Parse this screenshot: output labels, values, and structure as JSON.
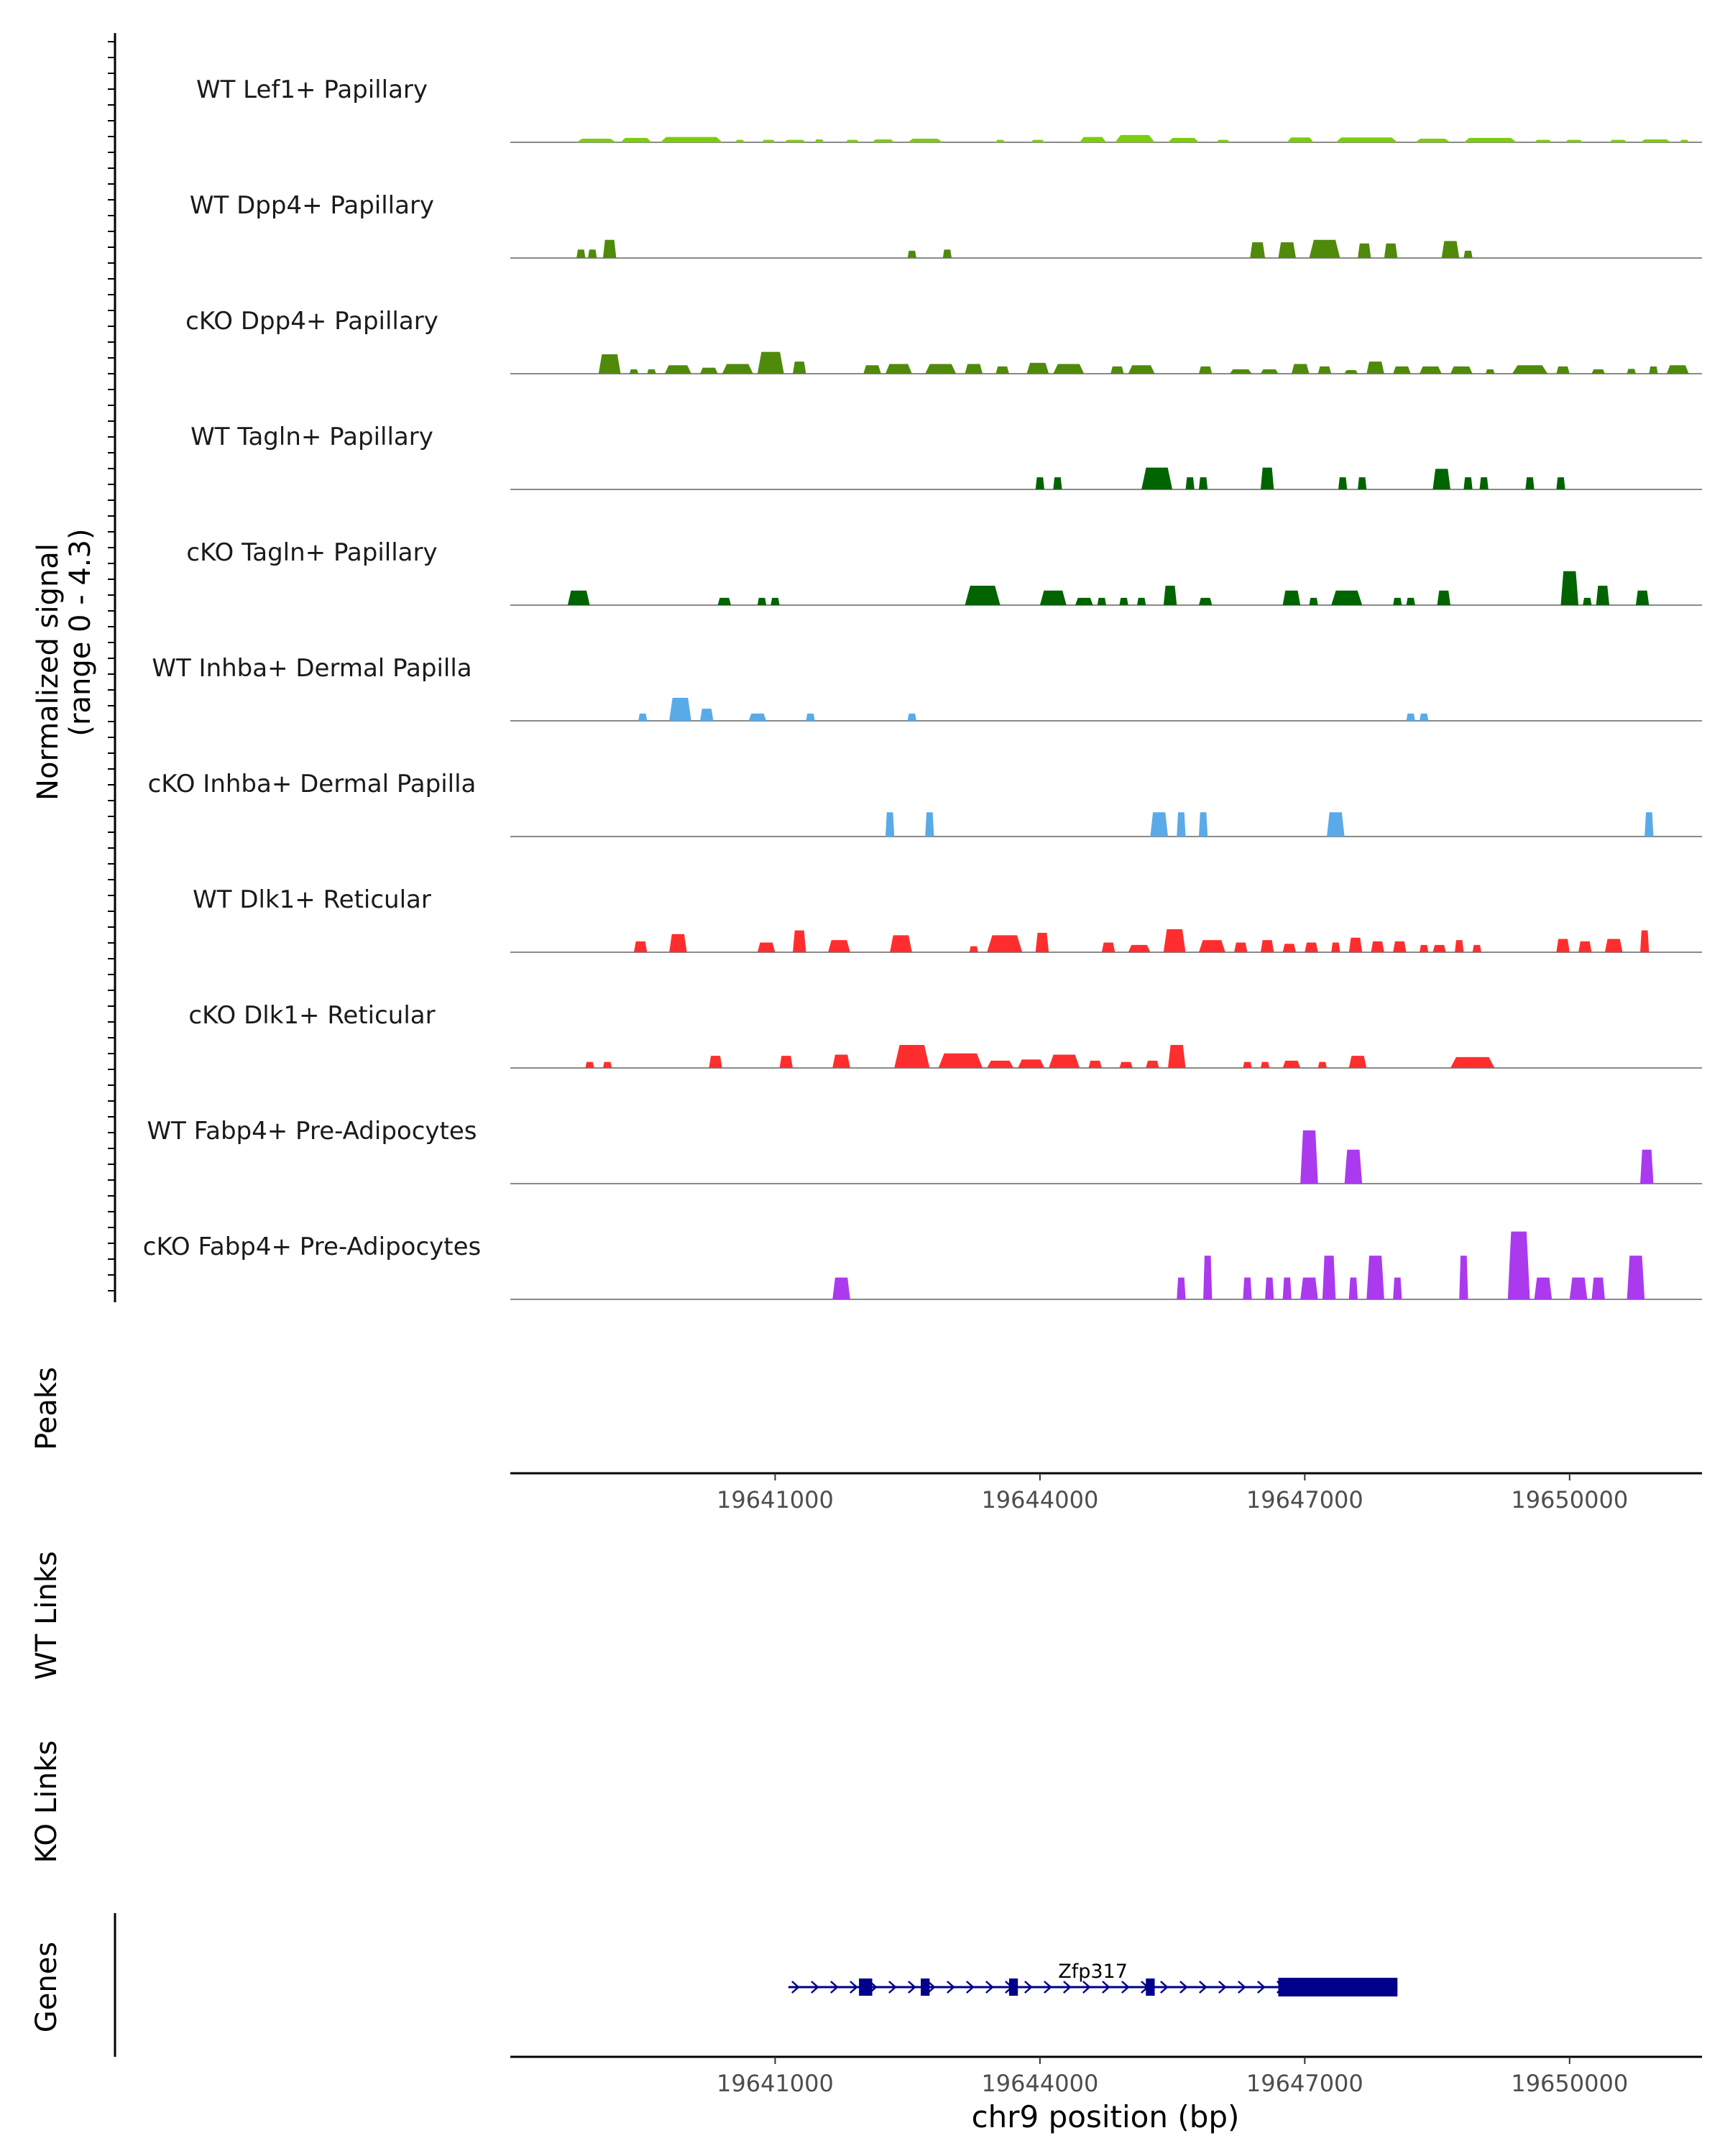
{
  "chart_data": {
    "type": "area",
    "title": "",
    "ylabel_line1": "Normalized signal",
    "ylabel_line2": "(range 0 - 4.3)",
    "y_range": [
      0,
      4.3
    ],
    "xlabel": "chr9 position (bp)",
    "x_range": [
      19638000,
      19651500
    ],
    "x_ticks": [
      19641000,
      19644000,
      19647000,
      19650000
    ],
    "x_tick_labels": [
      "19641000",
      "19644000",
      "19647000",
      "19650000"
    ],
    "tracks": [
      {
        "name": "WT Lef1+ Papillary",
        "color": "#7ccd0b",
        "mode": "dense",
        "peaks": [
          [
            19638750,
            19639200,
            0.15
          ],
          [
            19639250,
            19639600,
            0.18
          ],
          [
            19639700,
            19640400,
            0.22
          ],
          [
            19640550,
            19640650,
            0.1
          ],
          [
            19640850,
            19641000,
            0.1
          ],
          [
            19641100,
            19641350,
            0.1
          ],
          [
            19641450,
            19641550,
            0.12
          ],
          [
            19641800,
            19641950,
            0.1
          ],
          [
            19642100,
            19642350,
            0.12
          ],
          [
            19642500,
            19642900,
            0.15
          ],
          [
            19643500,
            19643600,
            0.1
          ],
          [
            19643900,
            19644050,
            0.1
          ],
          [
            19644450,
            19644750,
            0.22
          ],
          [
            19644850,
            19645300,
            0.3
          ],
          [
            19645450,
            19645800,
            0.18
          ],
          [
            19646000,
            19646150,
            0.1
          ],
          [
            19646800,
            19647100,
            0.2
          ],
          [
            19647350,
            19648050,
            0.2
          ],
          [
            19648250,
            19648650,
            0.15
          ],
          [
            19648800,
            19649400,
            0.18
          ],
          [
            19649600,
            19649800,
            0.1
          ],
          [
            19649950,
            19650150,
            0.1
          ],
          [
            19650450,
            19650650,
            0.1
          ],
          [
            19650800,
            19651150,
            0.12
          ],
          [
            19651250,
            19651350,
            0.1
          ]
        ]
      },
      {
        "name": "WT Dpp4+ Papillary",
        "color": "#4f8a0b",
        "mode": "sparse",
        "peaks": [
          [
            19638750,
            19638850,
            0.35
          ],
          [
            19638880,
            19638980,
            0.35
          ],
          [
            19639050,
            19639200,
            0.75
          ],
          [
            19642500,
            19642600,
            0.3
          ],
          [
            19642900,
            19643000,
            0.35
          ],
          [
            19646380,
            19646550,
            0.65
          ],
          [
            19646700,
            19646900,
            0.65
          ],
          [
            19647050,
            19647400,
            0.75
          ],
          [
            19647600,
            19647750,
            0.6
          ],
          [
            19647900,
            19648050,
            0.6
          ],
          [
            19648550,
            19648750,
            0.7
          ],
          [
            19648800,
            19648900,
            0.3
          ]
        ]
      },
      {
        "name": "cKO Dpp4+ Papillary",
        "color": "#4f8a0b",
        "mode": "dense",
        "peaks": [
          [
            19639000,
            19639250,
            0.8
          ],
          [
            19639350,
            19639450,
            0.18
          ],
          [
            19639550,
            19639650,
            0.18
          ],
          [
            19639750,
            19640050,
            0.35
          ],
          [
            19640150,
            19640350,
            0.25
          ],
          [
            19640400,
            19640750,
            0.4
          ],
          [
            19640800,
            19641100,
            0.9
          ],
          [
            19641200,
            19641350,
            0.5
          ],
          [
            19642000,
            19642200,
            0.35
          ],
          [
            19642250,
            19642550,
            0.4
          ],
          [
            19642700,
            19643050,
            0.4
          ],
          [
            19643150,
            19643350,
            0.4
          ],
          [
            19643500,
            19643650,
            0.3
          ],
          [
            19643850,
            19644100,
            0.45
          ],
          [
            19644150,
            19644500,
            0.4
          ],
          [
            19644800,
            19644950,
            0.3
          ],
          [
            19645000,
            19645300,
            0.35
          ],
          [
            19645800,
            19645950,
            0.3
          ],
          [
            19646150,
            19646400,
            0.18
          ],
          [
            19646500,
            19646700,
            0.18
          ],
          [
            19646850,
            19647050,
            0.4
          ],
          [
            19647150,
            19647300,
            0.3
          ],
          [
            19647450,
            19647600,
            0.15
          ],
          [
            19647700,
            19647900,
            0.5
          ],
          [
            19648000,
            19648200,
            0.3
          ],
          [
            19648300,
            19648550,
            0.3
          ],
          [
            19648650,
            19648900,
            0.3
          ],
          [
            19649050,
            19649150,
            0.18
          ],
          [
            19649350,
            19649750,
            0.35
          ],
          [
            19649850,
            19650000,
            0.3
          ],
          [
            19650250,
            19650400,
            0.18
          ],
          [
            19650650,
            19650750,
            0.2
          ],
          [
            19650900,
            19651000,
            0.3
          ],
          [
            19651100,
            19651350,
            0.35
          ]
        ]
      },
      {
        "name": "WT Tagln+ Papillary",
        "color": "#006400",
        "mode": "sparse",
        "peaks": [
          [
            19643950,
            19644050,
            0.5
          ],
          [
            19644150,
            19644250,
            0.5
          ],
          [
            19645150,
            19645500,
            0.9
          ],
          [
            19645650,
            19645750,
            0.5
          ],
          [
            19645800,
            19645900,
            0.5
          ],
          [
            19646500,
            19646650,
            0.9
          ],
          [
            19647380,
            19647480,
            0.5
          ],
          [
            19647600,
            19647700,
            0.5
          ],
          [
            19648450,
            19648650,
            0.85
          ],
          [
            19648800,
            19648900,
            0.5
          ],
          [
            19648980,
            19649080,
            0.5
          ],
          [
            19649500,
            19649600,
            0.5
          ],
          [
            19649850,
            19649950,
            0.5
          ]
        ]
      },
      {
        "name": "cKO Tagln+ Papillary",
        "color": "#006400",
        "mode": "sparse",
        "peaks": [
          [
            19638650,
            19638900,
            0.6
          ],
          [
            19640350,
            19640500,
            0.3
          ],
          [
            19640800,
            19640900,
            0.3
          ],
          [
            19640950,
            19641050,
            0.3
          ],
          [
            19643150,
            19643550,
            0.8
          ],
          [
            19644000,
            19644300,
            0.6
          ],
          [
            19644400,
            19644600,
            0.3
          ],
          [
            19644650,
            19644750,
            0.3
          ],
          [
            19644900,
            19645000,
            0.3
          ],
          [
            19645100,
            19645200,
            0.3
          ],
          [
            19645400,
            19645550,
            0.8
          ],
          [
            19645800,
            19645950,
            0.3
          ],
          [
            19646750,
            19646950,
            0.6
          ],
          [
            19647050,
            19647150,
            0.3
          ],
          [
            19647300,
            19647650,
            0.6
          ],
          [
            19648000,
            19648100,
            0.3
          ],
          [
            19648150,
            19648250,
            0.3
          ],
          [
            19648500,
            19648650,
            0.6
          ],
          [
            19649900,
            19650100,
            1.4
          ],
          [
            19650150,
            19650250,
            0.3
          ],
          [
            19650300,
            19650450,
            0.8
          ],
          [
            19650750,
            19650900,
            0.6
          ]
        ]
      },
      {
        "name": "WT Inhba+ Dermal Papilla",
        "color": "#5aaae8",
        "mode": "sparse",
        "peaks": [
          [
            19639450,
            19639550,
            0.3
          ],
          [
            19639800,
            19640050,
            0.95
          ],
          [
            19640150,
            19640300,
            0.5
          ],
          [
            19640700,
            19640900,
            0.3
          ],
          [
            19641350,
            19641450,
            0.3
          ],
          [
            19642500,
            19642600,
            0.3
          ],
          [
            19648150,
            19648250,
            0.3
          ],
          [
            19648300,
            19648400,
            0.3
          ]
        ]
      },
      {
        "name": "cKO Inhba+ Dermal Papilla",
        "color": "#5aaae8",
        "mode": "sparse",
        "peaks": [
          [
            19642250,
            19642350,
            1.0
          ],
          [
            19642700,
            19642800,
            1.0
          ],
          [
            19645250,
            19645450,
            1.0
          ],
          [
            19645550,
            19645650,
            1.0
          ],
          [
            19645800,
            19645900,
            1.0
          ],
          [
            19647250,
            19647450,
            1.0
          ],
          [
            19650850,
            19650950,
            1.0
          ]
        ]
      },
      {
        "name": "WT Dlk1+ Reticular",
        "color": "#ff2e2e",
        "mode": "dense",
        "peaks": [
          [
            19639400,
            19639550,
            0.45
          ],
          [
            19639800,
            19640000,
            0.75
          ],
          [
            19640800,
            19641000,
            0.4
          ],
          [
            19641200,
            19641350,
            0.9
          ],
          [
            19641600,
            19641850,
            0.5
          ],
          [
            19642300,
            19642550,
            0.7
          ],
          [
            19643200,
            19643300,
            0.25
          ],
          [
            19643400,
            19643800,
            0.7
          ],
          [
            19643950,
            19644100,
            0.8
          ],
          [
            19644700,
            19644850,
            0.4
          ],
          [
            19645000,
            19645250,
            0.3
          ],
          [
            19645400,
            19645650,
            0.95
          ],
          [
            19645800,
            19646100,
            0.5
          ],
          [
            19646200,
            19646350,
            0.4
          ],
          [
            19646500,
            19646650,
            0.5
          ],
          [
            19646750,
            19646900,
            0.35
          ],
          [
            19647000,
            19647150,
            0.4
          ],
          [
            19647300,
            19647400,
            0.4
          ],
          [
            19647500,
            19647650,
            0.6
          ],
          [
            19647750,
            19647900,
            0.45
          ],
          [
            19648000,
            19648150,
            0.45
          ],
          [
            19648300,
            19648400,
            0.3
          ],
          [
            19648450,
            19648600,
            0.3
          ],
          [
            19648700,
            19648800,
            0.5
          ],
          [
            19648900,
            19649000,
            0.3
          ],
          [
            19649850,
            19650000,
            0.55
          ],
          [
            19650100,
            19650250,
            0.45
          ],
          [
            19650400,
            19650600,
            0.55
          ],
          [
            19650800,
            19650900,
            0.9
          ]
        ]
      },
      {
        "name": "cKO Dlk1+ Reticular",
        "color": "#ff2e2e",
        "mode": "dense",
        "peaks": [
          [
            19638850,
            19638950,
            0.25
          ],
          [
            19639050,
            19639150,
            0.25
          ],
          [
            19640250,
            19640400,
            0.5
          ],
          [
            19641050,
            19641200,
            0.5
          ],
          [
            19641650,
            19641850,
            0.55
          ],
          [
            19642350,
            19642750,
            0.95
          ],
          [
            19642850,
            19643350,
            0.6
          ],
          [
            19643400,
            19643700,
            0.3
          ],
          [
            19643750,
            19644050,
            0.35
          ],
          [
            19644100,
            19644450,
            0.55
          ],
          [
            19644550,
            19644700,
            0.3
          ],
          [
            19644900,
            19645050,
            0.25
          ],
          [
            19645200,
            19645350,
            0.3
          ],
          [
            19645450,
            19645650,
            0.95
          ],
          [
            19646300,
            19646400,
            0.25
          ],
          [
            19646500,
            19646600,
            0.25
          ],
          [
            19646750,
            19646950,
            0.3
          ],
          [
            19647150,
            19647250,
            0.25
          ],
          [
            19647500,
            19647700,
            0.5
          ],
          [
            19648650,
            19649150,
            0.45
          ]
        ]
      },
      {
        "name": "WT Fabp4+ Pre-Adipocytes",
        "color": "#ab3aee",
        "mode": "sparse",
        "peaks": [
          [
            19646950,
            19647150,
            2.2
          ],
          [
            19647450,
            19647650,
            1.4
          ],
          [
            19650800,
            19650950,
            1.4
          ]
        ]
      },
      {
        "name": "cKO Fabp4+ Pre-Adipocytes",
        "color": "#ab3aee",
        "mode": "sparse",
        "peaks": [
          [
            19641650,
            19641850,
            0.9
          ],
          [
            19645550,
            19645650,
            0.9
          ],
          [
            19645850,
            19645950,
            1.8
          ],
          [
            19646300,
            19646400,
            0.9
          ],
          [
            19646550,
            19646650,
            0.9
          ],
          [
            19646750,
            19646850,
            0.9
          ],
          [
            19646950,
            19647150,
            0.9
          ],
          [
            19647200,
            19647350,
            1.8
          ],
          [
            19647500,
            19647600,
            0.9
          ],
          [
            19647700,
            19647900,
            1.8
          ],
          [
            19648000,
            19648100,
            0.9
          ],
          [
            19648750,
            19648850,
            1.8
          ],
          [
            19649300,
            19649550,
            2.8
          ],
          [
            19649600,
            19649800,
            0.9
          ],
          [
            19650000,
            19650200,
            0.9
          ],
          [
            19650250,
            19650400,
            0.9
          ],
          [
            19650650,
            19650850,
            1.8
          ]
        ]
      }
    ],
    "other_tracks": [
      "Peaks",
      "WT Links",
      "KO Links"
    ],
    "genes": {
      "label": "Genes",
      "gene_name": "Zfp317",
      "color": "#00008b",
      "strand": "+",
      "start": 19641150,
      "end": 19648050,
      "exons": [
        [
          19641950,
          19642100
        ],
        [
          19642650,
          19642750
        ],
        [
          19643650,
          19643750
        ],
        [
          19645200,
          19645300
        ],
        [
          19646700,
          19648050
        ]
      ]
    }
  }
}
